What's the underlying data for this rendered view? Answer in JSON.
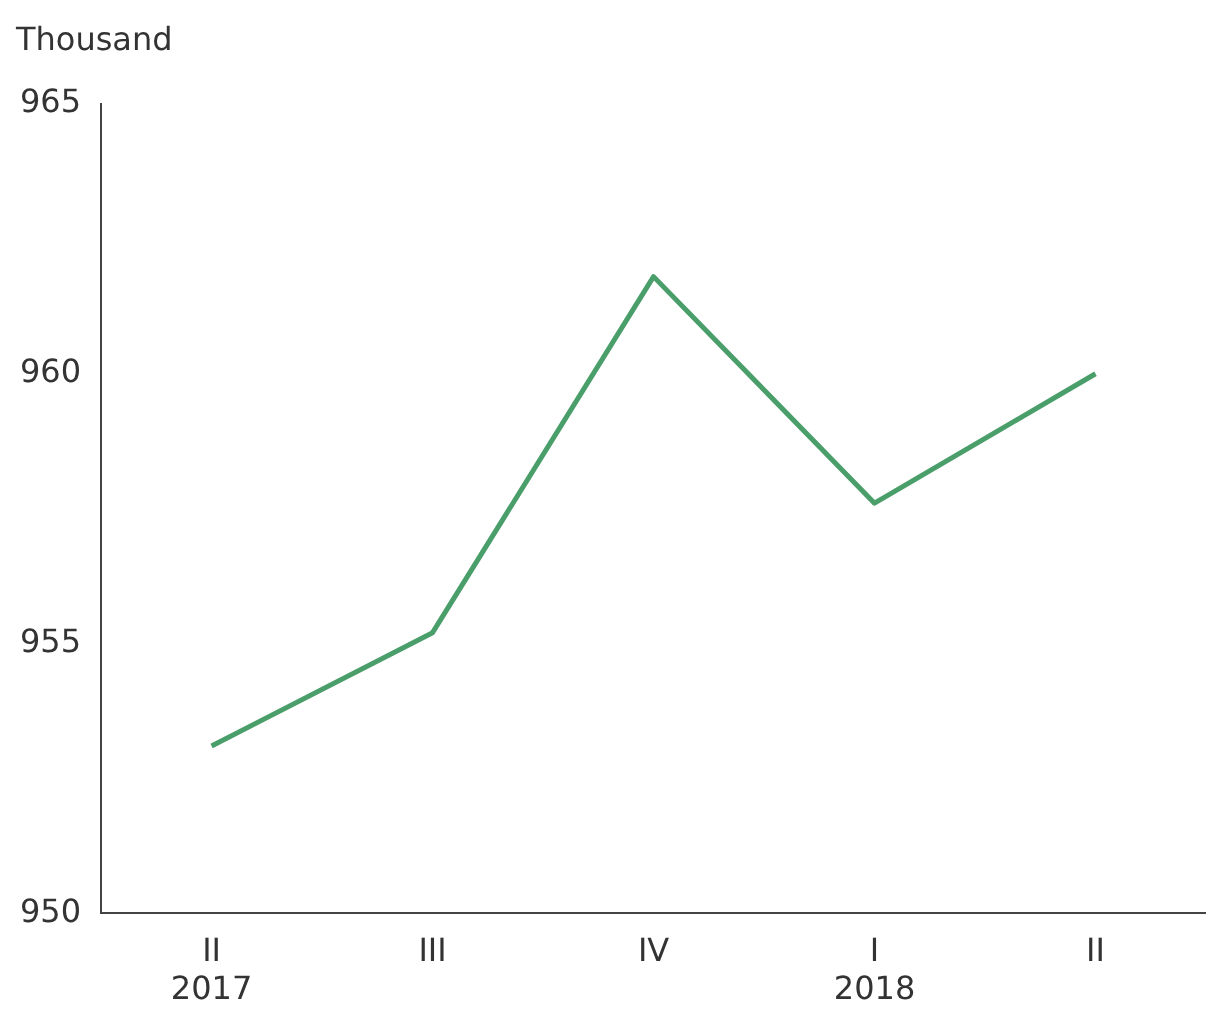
{
  "chart_data": {
    "type": "line",
    "ylabel": "Thousand",
    "categories": [
      "II\n2017",
      "III",
      "IV",
      "I\n2018",
      "II"
    ],
    "series": [
      {
        "color": "#4a9e6a",
        "values": [
          953.1,
          955.2,
          961.8,
          957.6,
          960.0
        ]
      }
    ],
    "ylim": [
      950,
      965
    ],
    "yticks": [
      950,
      955,
      960,
      965
    ],
    "grid": false,
    "legend": false,
    "marker": "none",
    "line_style": "solid"
  }
}
